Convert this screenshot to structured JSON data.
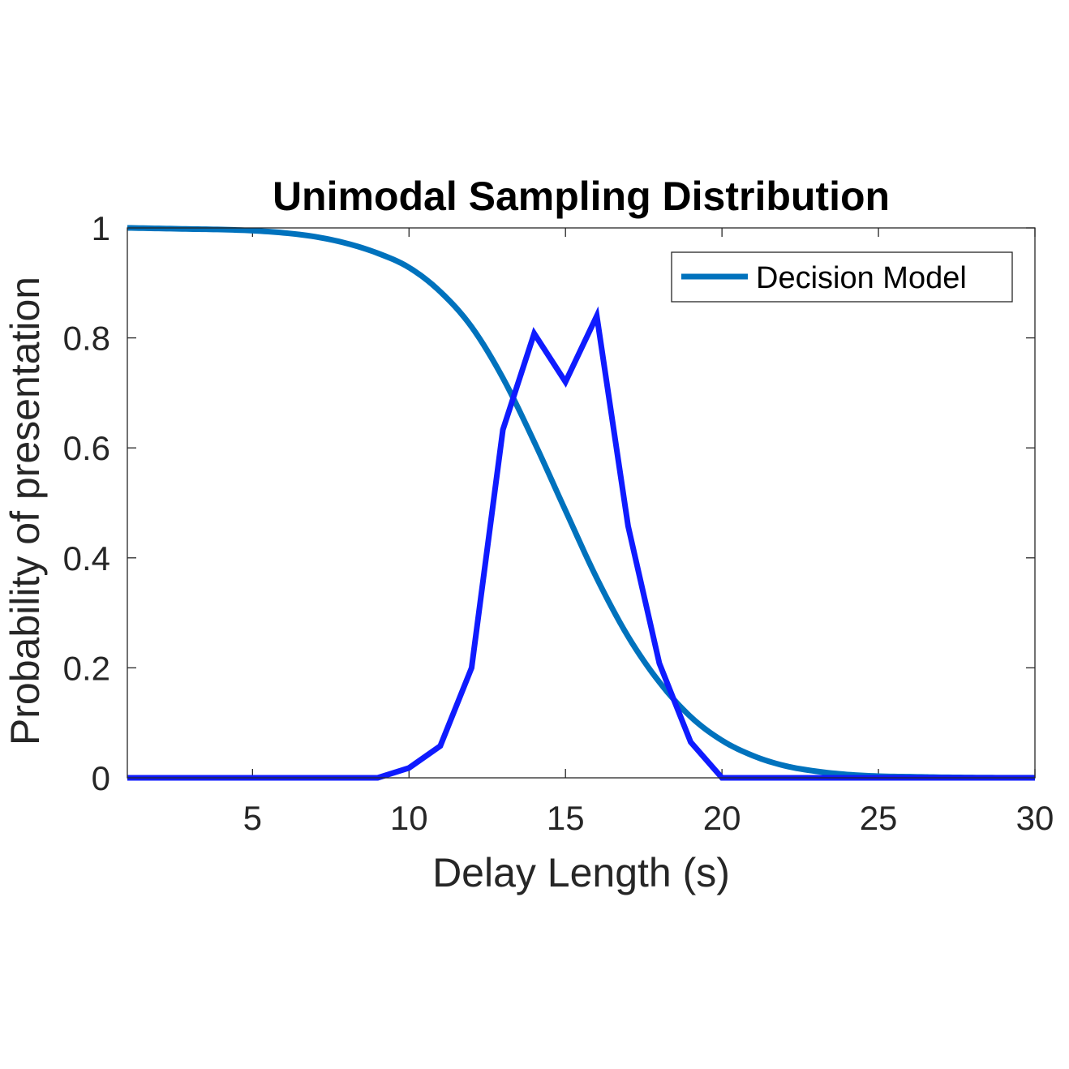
{
  "chart_data": {
    "type": "line",
    "title": "Unimodal Sampling Distribution",
    "xlabel": "Delay Length (s)",
    "ylabel": "Probability of presentation",
    "xlim": [
      1,
      30
    ],
    "ylim": [
      0,
      1
    ],
    "xticks": [
      5,
      10,
      15,
      20,
      25,
      30
    ],
    "yticks": [
      0,
      0.2,
      0.4,
      0.6,
      0.8,
      1
    ],
    "xtick_labels": [
      "5",
      "10",
      "15",
      "20",
      "25",
      "30"
    ],
    "ytick_labels": [
      "0",
      "0.2",
      "0.4",
      "0.6",
      "0.8",
      "1"
    ],
    "grid": false,
    "legend_position": "top-right",
    "legend": [
      "Decision Model"
    ],
    "colors": {
      "decision_model": "#0072BD",
      "sampling": "#0F1BFF",
      "axis": "#262626"
    },
    "series": [
      {
        "name": "Decision Model",
        "in_legend": true,
        "x": [
          1,
          2,
          3,
          4,
          5,
          6,
          7,
          8,
          9,
          10,
          11,
          12,
          13,
          14,
          15,
          16,
          17,
          18,
          19,
          20,
          21,
          22,
          23,
          24,
          25,
          26,
          27,
          28,
          29,
          30
        ],
        "y": [
          1.0,
          0.999,
          0.998,
          0.997,
          0.995,
          0.991,
          0.984,
          0.972,
          0.954,
          0.928,
          0.884,
          0.82,
          0.727,
          0.611,
          0.486,
          0.363,
          0.257,
          0.174,
          0.111,
          0.068,
          0.04,
          0.022,
          0.012,
          0.006,
          0.003,
          0.002,
          0.001,
          0.0005,
          0.0002,
          0.0001
        ]
      },
      {
        "in_legend": false,
        "x": [
          1,
          2,
          3,
          4,
          5,
          6,
          7,
          8,
          9,
          10,
          11,
          12,
          13,
          14,
          15,
          16,
          17,
          18,
          19,
          20,
          21,
          22,
          23,
          24,
          25,
          26,
          27,
          28,
          29,
          30
        ],
        "y": [
          0,
          0,
          0,
          0,
          0,
          0,
          0,
          0,
          0,
          0.018,
          0.058,
          0.2,
          0.633,
          0.808,
          0.72,
          0.84,
          0.458,
          0.208,
          0.065,
          0,
          0,
          0,
          0,
          0,
          0,
          0,
          0,
          0,
          0,
          0
        ]
      }
    ]
  }
}
